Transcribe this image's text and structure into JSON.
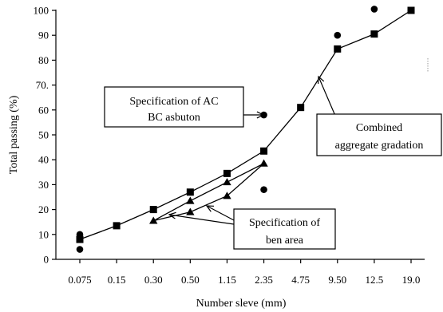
{
  "chart_data": {
    "type": "line",
    "title": "",
    "xlabel": "Number sleve (mm)",
    "ylabel": "Total passing (%)",
    "categories": [
      "0.075",
      "0.15",
      "0.30",
      "0.50",
      "1.15",
      "2.35",
      "4.75",
      "9.50",
      "12.5",
      "19.0"
    ],
    "ylim": [
      0,
      100
    ],
    "yticks": [
      "0",
      "10",
      "20",
      "30",
      "40",
      "50",
      "60",
      "70.",
      "80",
      "90",
      "100"
    ],
    "grid": false,
    "legend": "none",
    "series": [
      {
        "marker": "square",
        "values": [
          8,
          13.5,
          20,
          27,
          34.5,
          43.5,
          61,
          84.5,
          90.5,
          100
        ]
      },
      {
        "marker": "triangle",
        "x": [
          "0.30",
          "0.50",
          "1.15",
          "2.35"
        ],
        "upper": [
          15.5,
          23.5,
          31,
          38.5
        ],
        "lower": [
          15.5,
          19,
          25.5,
          38.5
        ]
      },
      {
        "marker": "circle",
        "points": [
          {
            "x": "0.075",
            "y": 10
          },
          {
            "x": "0.075",
            "y": 4
          },
          {
            "x": "2.35",
            "y": 58
          },
          {
            "x": "2.35",
            "y": 28
          },
          {
            "x": "9.50",
            "y": 90
          },
          {
            "x": "12.5",
            "y": 100.5
          }
        ]
      }
    ],
    "annotations": [
      {
        "id": "spec-ac-bc",
        "lines": [
          "Specification of AC",
          "BC asbuton"
        ]
      },
      {
        "id": "combined",
        "lines": [
          "Combined",
          "aggregate gradation"
        ]
      },
      {
        "id": "spec-ben",
        "lines": [
          "Specification of",
          "ben area"
        ]
      }
    ]
  },
  "colors": {
    "ink": "#000000",
    "background": "#ffffff"
  }
}
